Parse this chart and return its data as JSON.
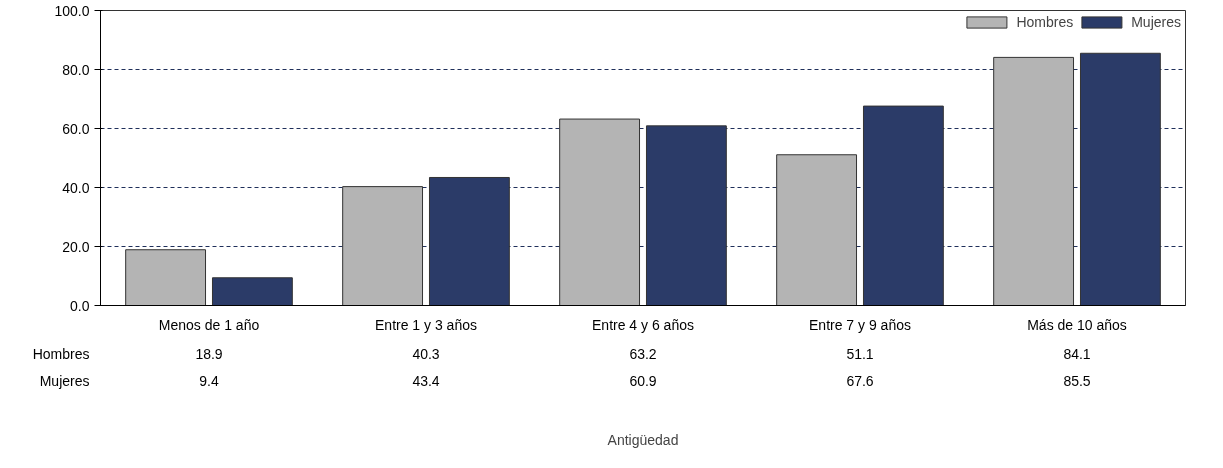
{
  "chart_data": {
    "type": "bar",
    "annotations": [
      "Antigüedad"
    ],
    "categories": [
      "Menos de 1 año",
      "Entre 1 y 3 años",
      "Entre 4 y 6 años",
      "Entre 7 y 9 años",
      "Más de 10 años"
    ],
    "series": [
      {
        "name": "Hombres",
        "color": "#b4b4b4",
        "values": [
          18.9,
          40.3,
          63.2,
          51.1,
          84.1
        ]
      },
      {
        "name": "Mujeres",
        "color": "#2b3b68",
        "values": [
          9.4,
          43.4,
          60.9,
          67.6,
          85.5
        ]
      }
    ],
    "ylim": [
      0,
      100
    ],
    "yticks": [
      {
        "value": 0,
        "label": "0.0"
      },
      {
        "value": 20,
        "label": "20.0"
      },
      {
        "value": 40,
        "label": "40.0"
      },
      {
        "value": 60,
        "label": "60.0"
      },
      {
        "value": 80,
        "label": "80.0"
      },
      {
        "value": 100,
        "label": "100.0"
      }
    ],
    "grid": "y",
    "legend": "top right",
    "data_labels": true
  }
}
